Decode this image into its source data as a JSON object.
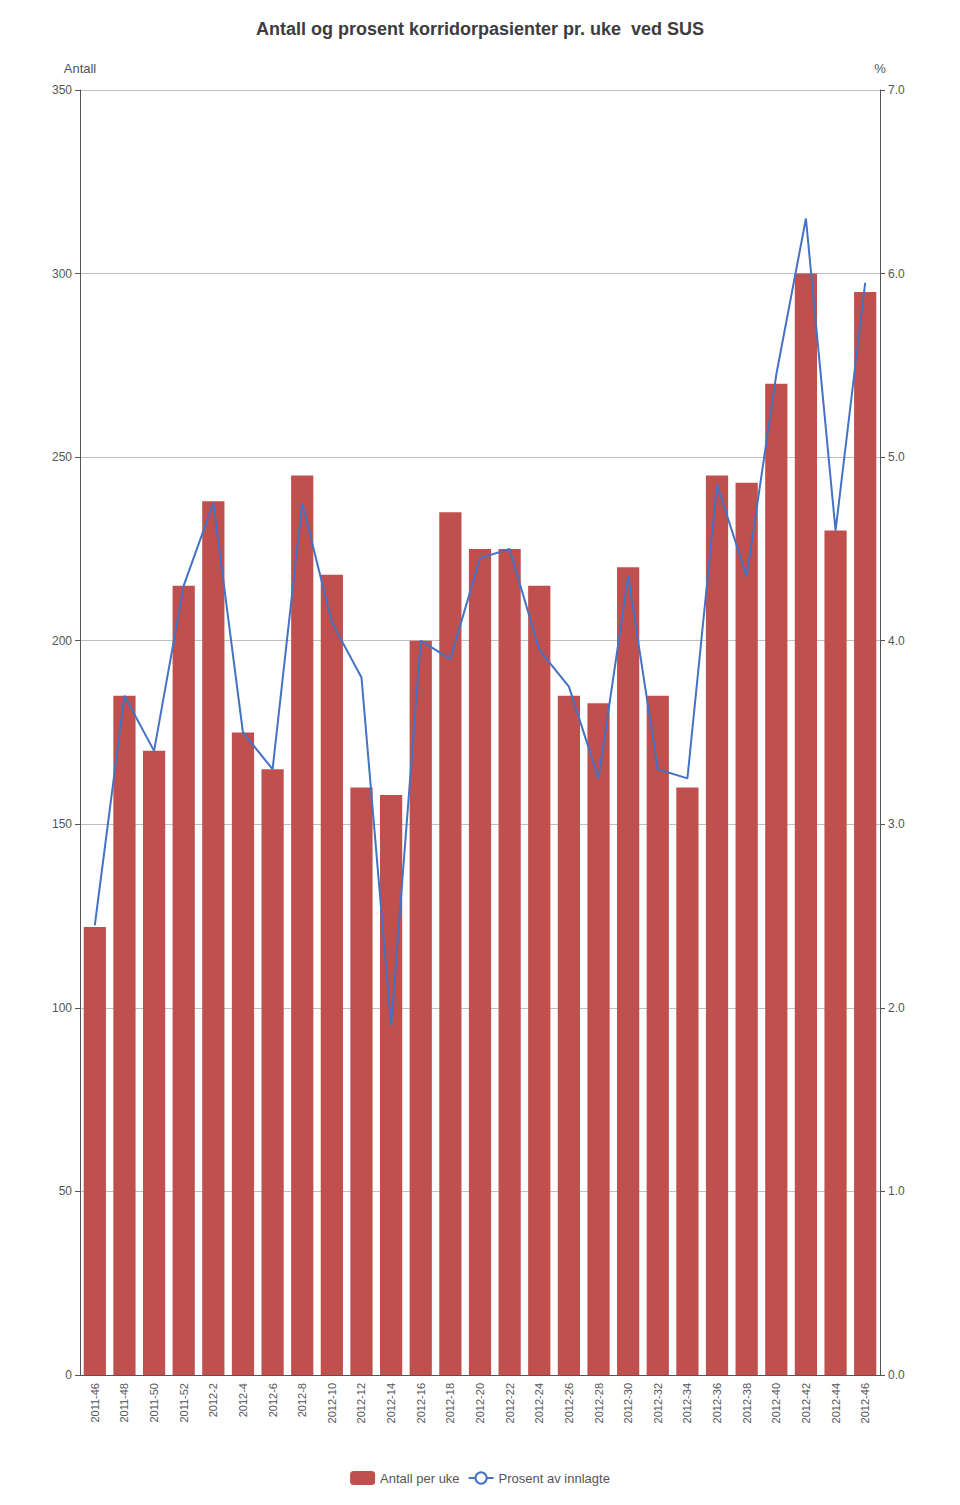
{
  "chart_data": {
    "type": "bar",
    "title": "Antall og prosent korridorpasienter pr. uke  ved SUS",
    "ylabel": "Antall",
    "y2label": "%",
    "categories": [
      "2011-46",
      "2011-48",
      "2011-50",
      "2011-52",
      "2012-2",
      "2012-4",
      "2012-6",
      "2012-8",
      "2012-10",
      "2012-12",
      "2012-14",
      "2012-16",
      "2012-18",
      "2012-20",
      "2012-22",
      "2012-24",
      "2012-26",
      "2012-28",
      "2012-30",
      "2012-32",
      "2012-34",
      "2012-36",
      "2012-38",
      "2012-40",
      "2012-42",
      "2012-44",
      "2012-46"
    ],
    "series": [
      {
        "name": "Antall per uke",
        "type": "bar",
        "color": "#C0504D",
        "values": [
          122,
          185,
          170,
          215,
          238,
          175,
          165,
          245,
          218,
          160,
          158,
          200,
          235,
          225,
          225,
          215,
          185,
          183,
          220,
          185,
          160,
          245,
          243,
          270,
          300,
          230,
          295
        ]
      },
      {
        "name": "Prosent av innlagte",
        "type": "line",
        "color": "#4472C4",
        "axis": "y2",
        "values": [
          2.45,
          3.7,
          3.4,
          4.3,
          4.75,
          3.5,
          3.3,
          4.75,
          4.1,
          3.8,
          1.9,
          4.0,
          3.9,
          4.45,
          4.5,
          3.95,
          3.75,
          3.25,
          4.35,
          3.3,
          3.25,
          4.85,
          4.35,
          5.45,
          6.3,
          4.6,
          5.95
        ]
      }
    ],
    "ylim": [
      0,
      350
    ],
    "yticks": [
      0,
      50,
      100,
      150,
      200,
      250,
      300,
      350
    ],
    "y2lim": [
      0,
      7.0
    ],
    "y2ticks": [
      {
        "value": 0,
        "label": "0.0"
      },
      {
        "value": 1,
        "label": "1.0"
      },
      {
        "value": 2,
        "label": "2.0"
      },
      {
        "value": 3,
        "label": "3.0"
      },
      {
        "value": 4,
        "label": "4.0"
      },
      {
        "value": 5,
        "label": "5.0"
      },
      {
        "value": 6,
        "label": "6.0"
      },
      {
        "value": 7,
        "label": "7.0"
      }
    ],
    "grid": true,
    "legend": "bottom"
  }
}
